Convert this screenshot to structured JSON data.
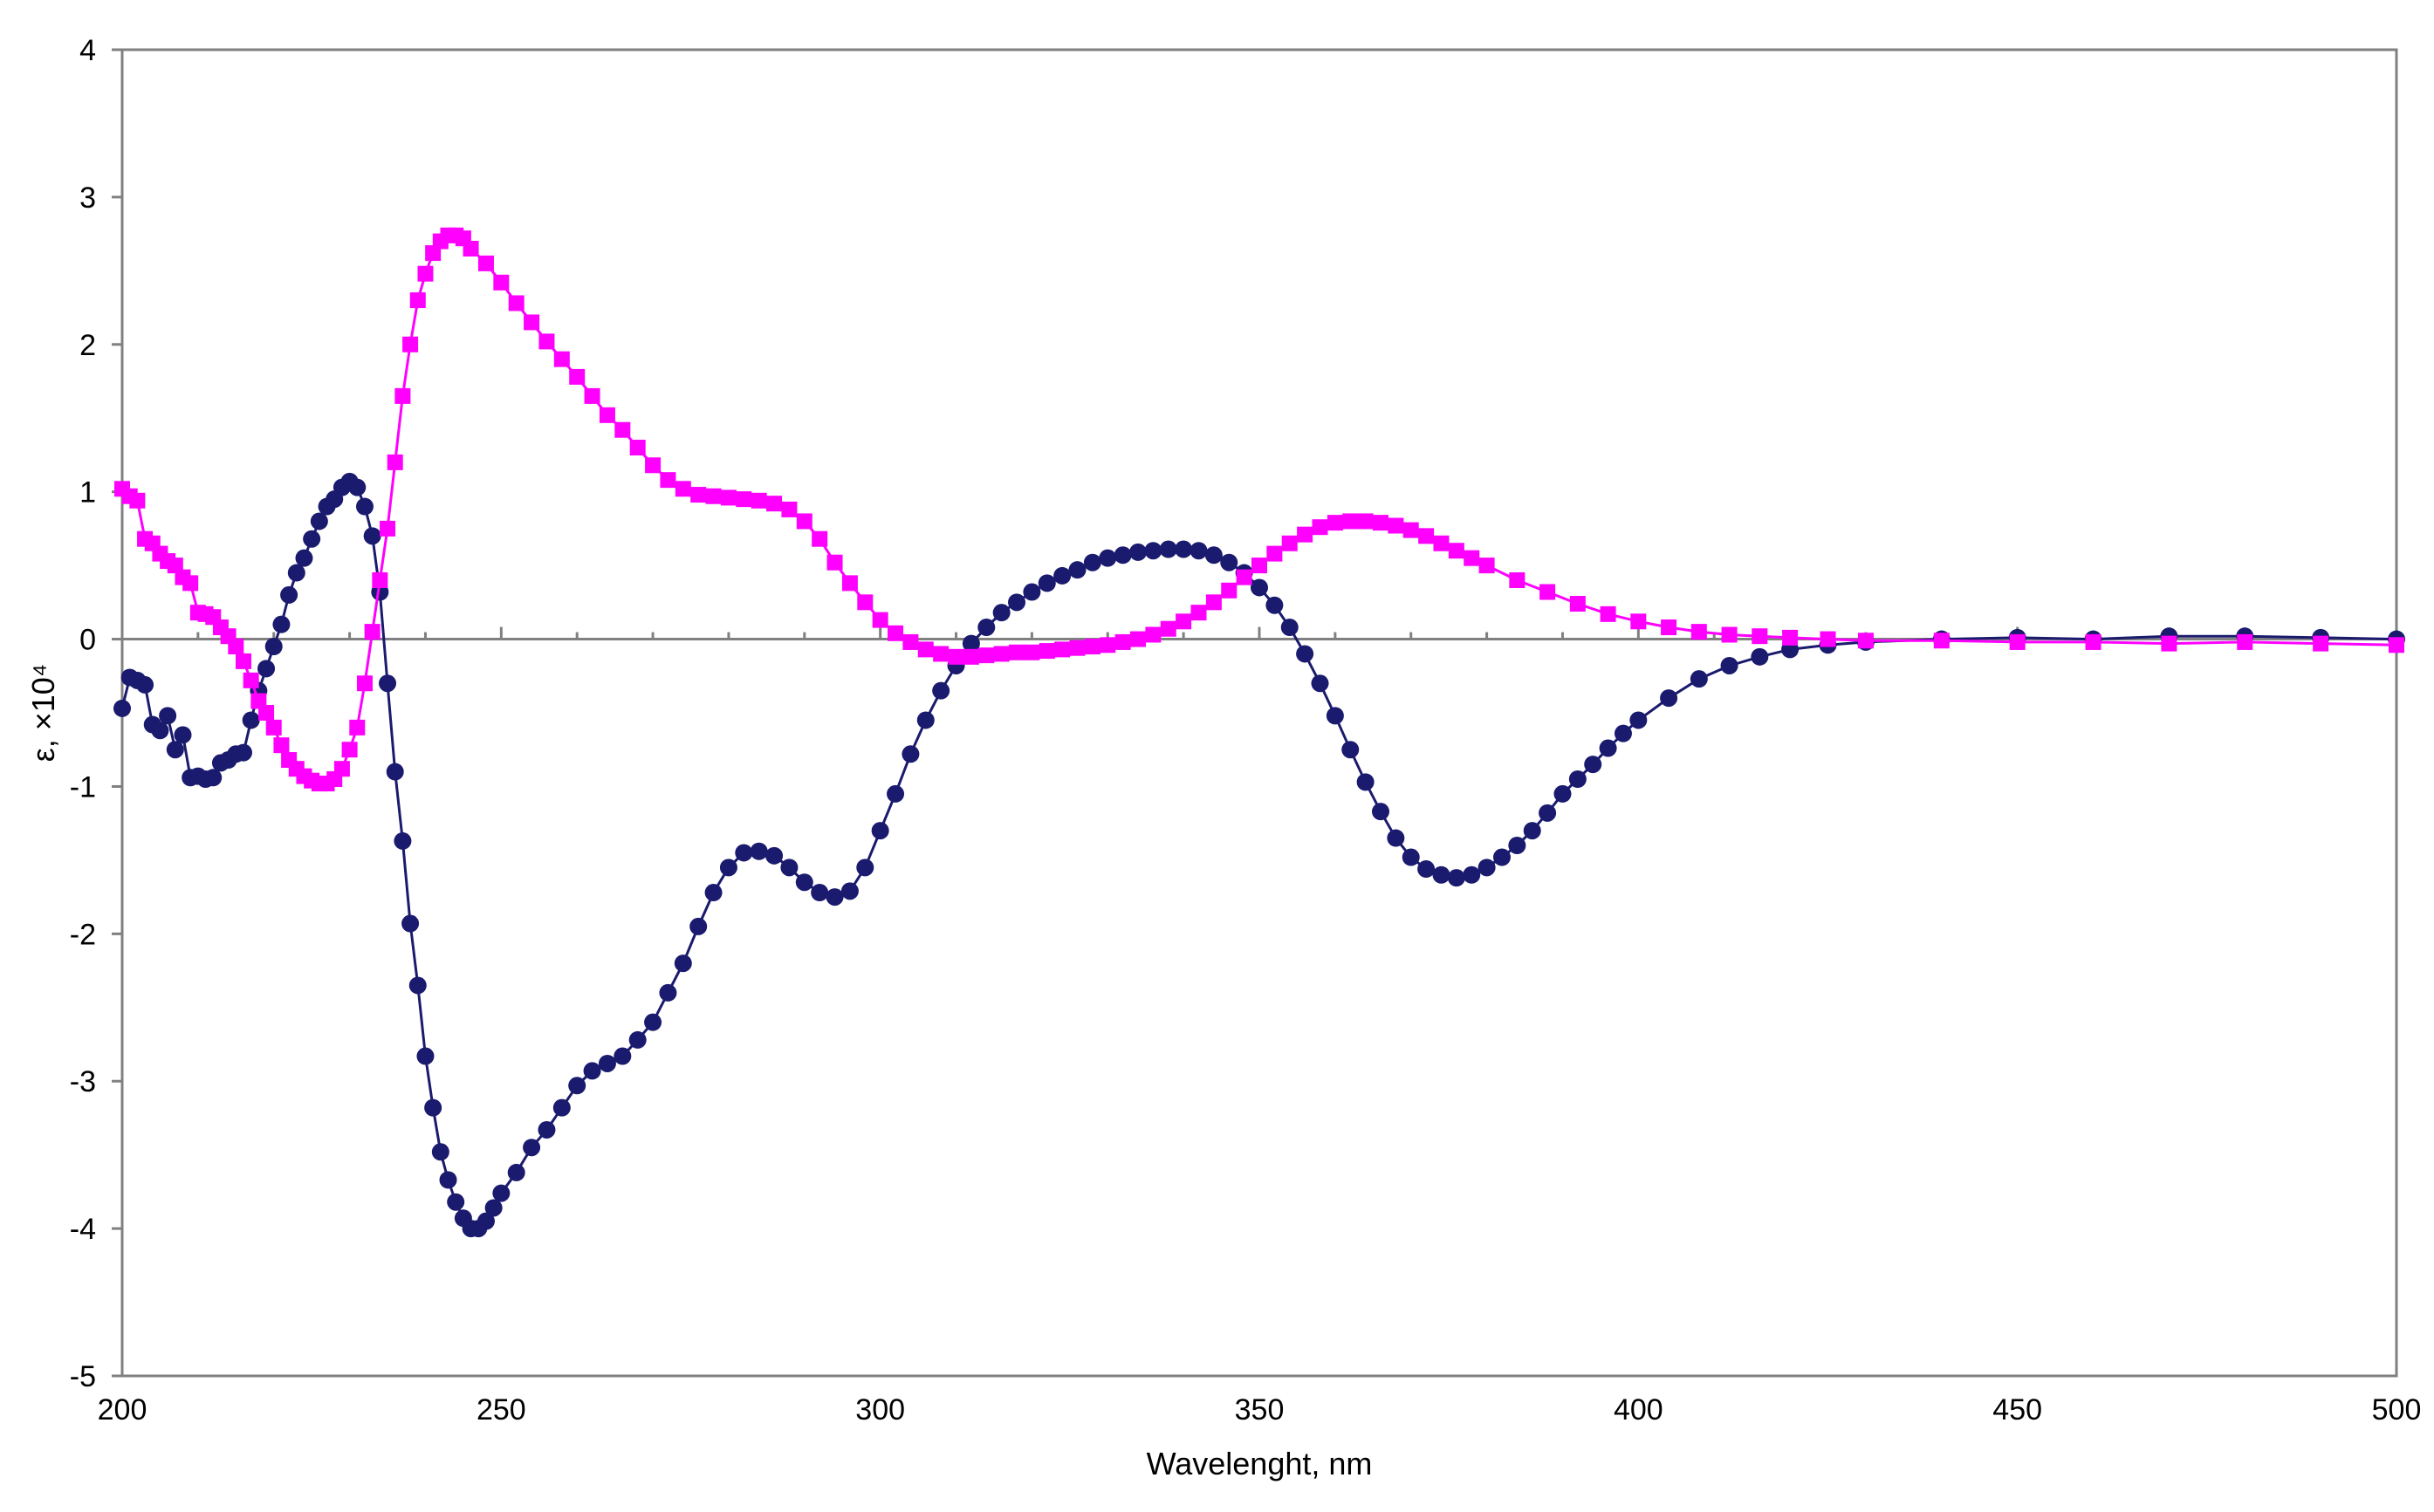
{
  "chart_data": {
    "type": "scatter",
    "title": "",
    "xlabel": "Wavelenght, nm",
    "ylabel": "ε, ×10⁴",
    "xlim": [
      200,
      500
    ],
    "ylim": [
      -5,
      4
    ],
    "x_ticks": [
      200,
      250,
      300,
      350,
      400,
      450,
      500
    ],
    "y_ticks": [
      4,
      3,
      2,
      1,
      0,
      -1,
      -2,
      -3,
      -4,
      -5
    ],
    "grid": false,
    "legend": "none",
    "series": [
      {
        "color": "#1a1a6e",
        "marker": "circle",
        "line": true,
        "points": [
          [
            200,
            -0.47
          ],
          [
            201,
            -0.26
          ],
          [
            202,
            -0.28
          ],
          [
            203,
            -0.31
          ],
          [
            204,
            -0.58
          ],
          [
            205,
            -0.62
          ],
          [
            206,
            -0.52
          ],
          [
            207,
            -0.75
          ],
          [
            208,
            -0.65
          ],
          [
            209,
            -0.94
          ],
          [
            210,
            -0.93
          ],
          [
            211,
            -0.95
          ],
          [
            212,
            -0.94
          ],
          [
            213,
            -0.84
          ],
          [
            214,
            -0.82
          ],
          [
            215,
            -0.78
          ],
          [
            216,
            -0.77
          ],
          [
            217,
            -0.55
          ],
          [
            218,
            -0.35
          ],
          [
            219,
            -0.2
          ],
          [
            220,
            -0.05
          ],
          [
            221,
            0.1
          ],
          [
            222,
            0.3
          ],
          [
            223,
            0.45
          ],
          [
            224,
            0.55
          ],
          [
            225,
            0.68
          ],
          [
            226,
            0.8
          ],
          [
            227,
            0.9
          ],
          [
            228,
            0.95
          ],
          [
            229,
            1.03
          ],
          [
            230,
            1.07
          ],
          [
            231,
            1.03
          ],
          [
            232,
            0.9
          ],
          [
            233,
            0.7
          ],
          [
            234,
            0.32
          ],
          [
            235,
            -0.3
          ],
          [
            236,
            -0.9
          ],
          [
            237,
            -1.37
          ],
          [
            238,
            -1.93
          ],
          [
            239,
            -2.35
          ],
          [
            240,
            -2.83
          ],
          [
            241,
            -3.18
          ],
          [
            242,
            -3.48
          ],
          [
            243,
            -3.67
          ],
          [
            244,
            -3.82
          ],
          [
            245,
            -3.93
          ],
          [
            246,
            -4.0
          ],
          [
            247,
            -4.0
          ],
          [
            248,
            -3.95
          ],
          [
            249,
            -3.86
          ],
          [
            250,
            -3.76
          ],
          [
            252,
            -3.62
          ],
          [
            254,
            -3.45
          ],
          [
            256,
            -3.33
          ],
          [
            258,
            -3.18
          ],
          [
            260,
            -3.03
          ],
          [
            262,
            -2.93
          ],
          [
            264,
            -2.88
          ],
          [
            266,
            -2.83
          ],
          [
            268,
            -2.72
          ],
          [
            270,
            -2.6
          ],
          [
            272,
            -2.4
          ],
          [
            274,
            -2.2
          ],
          [
            276,
            -1.95
          ],
          [
            278,
            -1.72
          ],
          [
            280,
            -1.55
          ],
          [
            282,
            -1.45
          ],
          [
            284,
            -1.44
          ],
          [
            286,
            -1.47
          ],
          [
            288,
            -1.55
          ],
          [
            290,
            -1.65
          ],
          [
            292,
            -1.72
          ],
          [
            294,
            -1.75
          ],
          [
            296,
            -1.71
          ],
          [
            298,
            -1.55
          ],
          [
            300,
            -1.3
          ],
          [
            302,
            -1.05
          ],
          [
            304,
            -0.78
          ],
          [
            306,
            -0.55
          ],
          [
            308,
            -0.35
          ],
          [
            310,
            -0.18
          ],
          [
            312,
            -0.03
          ],
          [
            314,
            0.08
          ],
          [
            316,
            0.18
          ],
          [
            318,
            0.25
          ],
          [
            320,
            0.32
          ],
          [
            322,
            0.38
          ],
          [
            324,
            0.43
          ],
          [
            326,
            0.47
          ],
          [
            328,
            0.52
          ],
          [
            330,
            0.55
          ],
          [
            332,
            0.57
          ],
          [
            334,
            0.59
          ],
          [
            336,
            0.6
          ],
          [
            338,
            0.61
          ],
          [
            340,
            0.61
          ],
          [
            342,
            0.6
          ],
          [
            344,
            0.57
          ],
          [
            346,
            0.52
          ],
          [
            348,
            0.45
          ],
          [
            350,
            0.35
          ],
          [
            352,
            0.23
          ],
          [
            354,
            0.08
          ],
          [
            356,
            -0.1
          ],
          [
            358,
            -0.3
          ],
          [
            360,
            -0.52
          ],
          [
            362,
            -0.75
          ],
          [
            364,
            -0.97
          ],
          [
            366,
            -1.17
          ],
          [
            368,
            -1.35
          ],
          [
            370,
            -1.48
          ],
          [
            372,
            -1.56
          ],
          [
            374,
            -1.6
          ],
          [
            376,
            -1.62
          ],
          [
            378,
            -1.6
          ],
          [
            380,
            -1.55
          ],
          [
            382,
            -1.48
          ],
          [
            384,
            -1.4
          ],
          [
            386,
            -1.3
          ],
          [
            388,
            -1.18
          ],
          [
            390,
            -1.05
          ],
          [
            392,
            -0.95
          ],
          [
            394,
            -0.85
          ],
          [
            396,
            -0.74
          ],
          [
            398,
            -0.64
          ],
          [
            400,
            -0.55
          ],
          [
            404,
            -0.4
          ],
          [
            408,
            -0.27
          ],
          [
            412,
            -0.18
          ],
          [
            416,
            -0.12
          ],
          [
            420,
            -0.07
          ],
          [
            425,
            -0.04
          ],
          [
            430,
            -0.02
          ],
          [
            440,
            0.0
          ],
          [
            450,
            0.01
          ],
          [
            460,
            0.0
          ],
          [
            470,
            0.02
          ],
          [
            480,
            0.02
          ],
          [
            490,
            0.01
          ],
          [
            500,
            0.0
          ]
        ]
      },
      {
        "color": "#ff00ff",
        "marker": "square",
        "line": true,
        "points": [
          [
            200,
            1.02
          ],
          [
            201,
            0.97
          ],
          [
            202,
            0.94
          ],
          [
            203,
            0.68
          ],
          [
            204,
            0.65
          ],
          [
            205,
            0.58
          ],
          [
            206,
            0.53
          ],
          [
            207,
            0.5
          ],
          [
            208,
            0.42
          ],
          [
            209,
            0.38
          ],
          [
            210,
            0.18
          ],
          [
            211,
            0.17
          ],
          [
            212,
            0.15
          ],
          [
            213,
            0.08
          ],
          [
            214,
            0.02
          ],
          [
            215,
            -0.05
          ],
          [
            216,
            -0.15
          ],
          [
            217,
            -0.28
          ],
          [
            218,
            -0.42
          ],
          [
            219,
            -0.5
          ],
          [
            220,
            -0.6
          ],
          [
            221,
            -0.72
          ],
          [
            222,
            -0.82
          ],
          [
            223,
            -0.88
          ],
          [
            224,
            -0.93
          ],
          [
            225,
            -0.96
          ],
          [
            226,
            -0.98
          ],
          [
            227,
            -0.98
          ],
          [
            228,
            -0.95
          ],
          [
            229,
            -0.88
          ],
          [
            230,
            -0.75
          ],
          [
            231,
            -0.6
          ],
          [
            232,
            -0.3
          ],
          [
            233,
            0.05
          ],
          [
            234,
            0.4
          ],
          [
            235,
            0.75
          ],
          [
            236,
            1.2
          ],
          [
            237,
            1.65
          ],
          [
            238,
            2.0
          ],
          [
            239,
            2.3
          ],
          [
            240,
            2.48
          ],
          [
            241,
            2.62
          ],
          [
            242,
            2.7
          ],
          [
            243,
            2.74
          ],
          [
            244,
            2.74
          ],
          [
            245,
            2.72
          ],
          [
            246,
            2.65
          ],
          [
            248,
            2.55
          ],
          [
            250,
            2.42
          ],
          [
            252,
            2.28
          ],
          [
            254,
            2.15
          ],
          [
            256,
            2.02
          ],
          [
            258,
            1.9
          ],
          [
            260,
            1.78
          ],
          [
            262,
            1.65
          ],
          [
            264,
            1.52
          ],
          [
            266,
            1.42
          ],
          [
            268,
            1.3
          ],
          [
            270,
            1.18
          ],
          [
            272,
            1.08
          ],
          [
            274,
            1.02
          ],
          [
            276,
            0.98
          ],
          [
            278,
            0.97
          ],
          [
            280,
            0.96
          ],
          [
            282,
            0.95
          ],
          [
            284,
            0.94
          ],
          [
            286,
            0.92
          ],
          [
            288,
            0.88
          ],
          [
            290,
            0.8
          ],
          [
            292,
            0.68
          ],
          [
            294,
            0.52
          ],
          [
            296,
            0.38
          ],
          [
            298,
            0.25
          ],
          [
            300,
            0.13
          ],
          [
            302,
            0.04
          ],
          [
            304,
            -0.02
          ],
          [
            306,
            -0.07
          ],
          [
            308,
            -0.1
          ],
          [
            310,
            -0.12
          ],
          [
            312,
            -0.12
          ],
          [
            314,
            -0.11
          ],
          [
            316,
            -0.1
          ],
          [
            318,
            -0.09
          ],
          [
            320,
            -0.09
          ],
          [
            322,
            -0.08
          ],
          [
            324,
            -0.07
          ],
          [
            326,
            -0.06
          ],
          [
            328,
            -0.05
          ],
          [
            330,
            -0.04
          ],
          [
            332,
            -0.02
          ],
          [
            334,
            0.0
          ],
          [
            336,
            0.03
          ],
          [
            338,
            0.07
          ],
          [
            340,
            0.12
          ],
          [
            342,
            0.18
          ],
          [
            344,
            0.25
          ],
          [
            346,
            0.33
          ],
          [
            348,
            0.42
          ],
          [
            350,
            0.5
          ],
          [
            352,
            0.58
          ],
          [
            354,
            0.65
          ],
          [
            356,
            0.71
          ],
          [
            358,
            0.76
          ],
          [
            360,
            0.79
          ],
          [
            362,
            0.8
          ],
          [
            364,
            0.8
          ],
          [
            366,
            0.79
          ],
          [
            368,
            0.77
          ],
          [
            370,
            0.74
          ],
          [
            372,
            0.7
          ],
          [
            374,
            0.65
          ],
          [
            376,
            0.6
          ],
          [
            378,
            0.55
          ],
          [
            380,
            0.5
          ],
          [
            384,
            0.4
          ],
          [
            388,
            0.32
          ],
          [
            392,
            0.24
          ],
          [
            396,
            0.17
          ],
          [
            400,
            0.12
          ],
          [
            404,
            0.08
          ],
          [
            408,
            0.05
          ],
          [
            412,
            0.03
          ],
          [
            416,
            0.02
          ],
          [
            420,
            0.01
          ],
          [
            425,
            0.0
          ],
          [
            430,
            -0.01
          ],
          [
            440,
            -0.01
          ],
          [
            450,
            -0.02
          ],
          [
            460,
            -0.02
          ],
          [
            470,
            -0.03
          ],
          [
            480,
            -0.02
          ],
          [
            490,
            -0.03
          ],
          [
            500,
            -0.04
          ]
        ]
      }
    ]
  }
}
